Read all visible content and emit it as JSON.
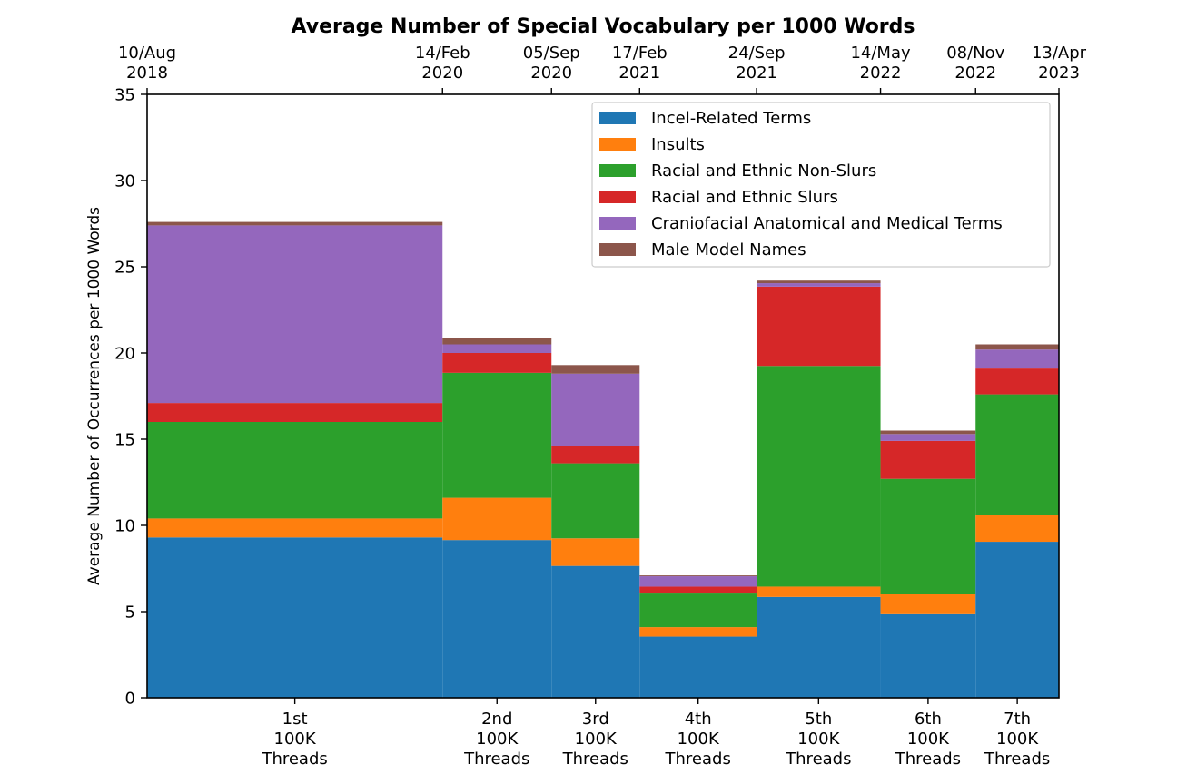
{
  "chart_data": {
    "type": "bar",
    "title": "Average Number of Special Vocabulary per 1000 Words",
    "xlabel": "",
    "ylabel": "Average Number of Occurrences per 1000 Words",
    "ylim": [
      0,
      35
    ],
    "yticks": [
      "0",
      "5",
      "10",
      "15",
      "20",
      "25",
      "30",
      "35"
    ],
    "grid": false,
    "legend_position": "top-right",
    "stacked": true,
    "bins": [
      {
        "label": [
          "1st",
          "100K",
          "Threads"
        ],
        "start": "2018-08-10",
        "end": "2020-02-14"
      },
      {
        "label": [
          "2nd",
          "100K",
          "Threads"
        ],
        "start": "2020-02-14",
        "end": "2020-09-05"
      },
      {
        "label": [
          "3rd",
          "100K",
          "Threads"
        ],
        "start": "2020-09-05",
        "end": "2021-02-17"
      },
      {
        "label": [
          "4th",
          "100K",
          "Threads"
        ],
        "start": "2021-02-17",
        "end": "2021-09-24"
      },
      {
        "label": [
          "5th",
          "100K",
          "Threads"
        ],
        "start": "2021-09-24",
        "end": "2022-05-14"
      },
      {
        "label": [
          "6th",
          "100K",
          "Threads"
        ],
        "start": "2022-05-14",
        "end": "2022-11-08"
      },
      {
        "label": [
          "7th",
          "100K",
          "Threads"
        ],
        "start": "2022-11-08",
        "end": "2023-04-13"
      }
    ],
    "top_axis_ticks": [
      {
        "date": "2018-08-10",
        "lines": [
          "10/Aug",
          "2018"
        ]
      },
      {
        "date": "2020-02-14",
        "lines": [
          "14/Feb",
          "2020"
        ]
      },
      {
        "date": "2020-09-05",
        "lines": [
          "05/Sep",
          "2020"
        ]
      },
      {
        "date": "2021-02-17",
        "lines": [
          "17/Feb",
          "2021"
        ]
      },
      {
        "date": "2021-09-24",
        "lines": [
          "24/Sep",
          "2021"
        ]
      },
      {
        "date": "2022-05-14",
        "lines": [
          "14/May",
          "2022"
        ]
      },
      {
        "date": "2022-11-08",
        "lines": [
          "08/Nov",
          "2022"
        ]
      },
      {
        "date": "2023-04-13",
        "lines": [
          "13/Apr",
          "2023"
        ]
      }
    ],
    "series": [
      {
        "name": "Incel-Related Terms",
        "color": "#1f77b4",
        "values": [
          9.3,
          9.15,
          7.65,
          3.55,
          5.85,
          4.85,
          9.05
        ]
      },
      {
        "name": "Insults",
        "color": "#ff7f0e",
        "values": [
          1.1,
          2.45,
          1.6,
          0.55,
          0.6,
          1.15,
          1.55
        ]
      },
      {
        "name": "Racial and Ethnic Non-Slurs",
        "color": "#2ca02c",
        "values": [
          5.6,
          7.25,
          4.35,
          1.95,
          12.8,
          6.7,
          7.0
        ]
      },
      {
        "name": "Racial and Ethnic Slurs",
        "color": "#d62728",
        "values": [
          1.1,
          1.15,
          1.0,
          0.4,
          4.6,
          2.2,
          1.5
        ]
      },
      {
        "name": "Craniofacial Anatomical and Medical Terms",
        "color": "#9467bd",
        "values": [
          10.3,
          0.5,
          4.2,
          0.6,
          0.2,
          0.4,
          1.1
        ]
      },
      {
        "name": "Male Model Names",
        "color": "#8c564b",
        "values": [
          0.2,
          0.35,
          0.5,
          0.05,
          0.15,
          0.2,
          0.3
        ]
      }
    ]
  }
}
